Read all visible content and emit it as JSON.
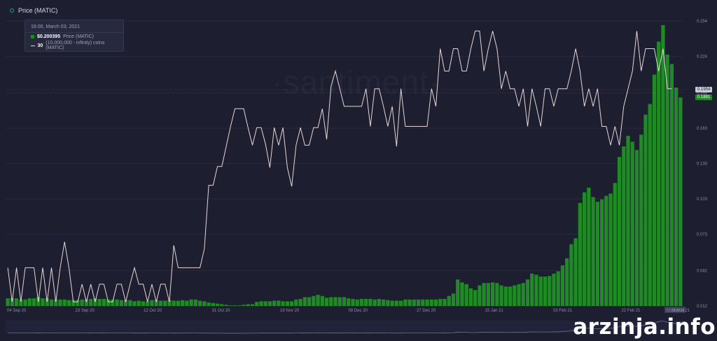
{
  "legend": {
    "label": "Price (MATIC)"
  },
  "tooltip": {
    "date": "16:00, March 03, 2021",
    "price_value": "$0.200395",
    "price_label": "Price (MATIC)",
    "holders_value": "30",
    "holders_label": "(10,000,000 - infinity) coins (MATIC)"
  },
  "watermark": "·santiment·",
  "current_tags": {
    "line": "0.1954",
    "bar": "0.1891"
  },
  "site_watermark": "arzinja.info",
  "colors": {
    "background": "#1d1f31",
    "bars": "#1f8b24",
    "line": "#e8d5d5"
  },
  "chart_data": {
    "type": "bar",
    "x_ticks": [
      "04 Sep 20",
      "23 Sep 20",
      "12 Oct 20",
      "31 Oct 20",
      "19 Nov 20",
      "08 Dec 20",
      "27 Dec 20",
      "15 Jan 21",
      "03 Feb 21",
      "22 Feb 21",
      "03 Mar 21",
      "13 Mar 21"
    ],
    "y_ticks": [
      "0.254",
      "0.224",
      "0.193",
      "0.163",
      "0.133",
      "0.103",
      "0.073",
      "0.042",
      "0.012"
    ],
    "y_range": [
      0.012,
      0.254
    ],
    "series": [
      {
        "name": "Price (MATIC)",
        "type": "bar",
        "values": [
          0.0185,
          0.0185,
          0.0185,
          0.0175,
          0.0175,
          0.0185,
          0.0185,
          0.0195,
          0.0185,
          0.0185,
          0.0175,
          0.0175,
          0.0175,
          0.0175,
          0.017,
          0.017,
          0.017,
          0.0175,
          0.0175,
          0.018,
          0.0185,
          0.018,
          0.018,
          0.0175,
          0.0175,
          0.0175,
          0.017,
          0.017,
          0.017,
          0.016,
          0.0165,
          0.016,
          0.016,
          0.017,
          0.017,
          0.0165,
          0.0165,
          0.017,
          0.0165,
          0.0165,
          0.017,
          0.0165,
          0.0175,
          0.0175,
          0.0165,
          0.016,
          0.015,
          0.0145,
          0.014,
          0.0135,
          0.013,
          0.0125,
          0.0125,
          0.0125,
          0.013,
          0.0135,
          0.0135,
          0.0155,
          0.016,
          0.016,
          0.016,
          0.0165,
          0.0165,
          0.016,
          0.016,
          0.016,
          0.0175,
          0.018,
          0.0195,
          0.0195,
          0.0205,
          0.0215,
          0.0205,
          0.019,
          0.0195,
          0.0195,
          0.0195,
          0.0195,
          0.0185,
          0.018,
          0.0175,
          0.018,
          0.018,
          0.018,
          0.0175,
          0.018,
          0.0175,
          0.017,
          0.0165,
          0.0165,
          0.0165,
          0.0175,
          0.0175,
          0.0175,
          0.0175,
          0.0175,
          0.0175,
          0.0175,
          0.0175,
          0.018,
          0.018,
          0.0205,
          0.0225,
          0.0345,
          0.032,
          0.0305,
          0.027,
          0.0255,
          0.0295,
          0.0315,
          0.0315,
          0.032,
          0.0315,
          0.0295,
          0.0285,
          0.0285,
          0.0295,
          0.0305,
          0.0315,
          0.0345,
          0.0395,
          0.0385,
          0.037,
          0.037,
          0.0375,
          0.0395,
          0.0415,
          0.0465,
          0.0525,
          0.0645,
          0.0695,
          0.0995,
          0.1085,
          0.1125,
          0.1045,
          0.1005,
          0.1025,
          0.1055,
          0.1075,
          0.1165,
          0.1385,
          0.1475,
          0.1565,
          0.1515,
          0.1445,
          0.1575,
          0.1745,
          0.1835,
          0.2085,
          0.2365,
          0.2505,
          0.2255,
          0.2175,
          0.1975,
          0.1891
        ]
      },
      {
        "name": "30 (10,000,000 - infinity) coins (MATIC)",
        "type": "line",
        "values": [
          0.0445,
          0.0155,
          0.0445,
          0.0155,
          0.0445,
          0.0445,
          0.0445,
          0.0155,
          0.0445,
          0.0155,
          0.0445,
          0.0155,
          0.0445,
          0.0665,
          0.0445,
          0.0155,
          0.0155,
          0.0305,
          0.0155,
          0.0305,
          0.0155,
          0.0305,
          0.0305,
          0.0155,
          0.0155,
          0.0305,
          0.0305,
          0.0155,
          0.0305,
          0.0445,
          0.0305,
          0.0305,
          0.0155,
          0.0305,
          0.0155,
          0.0305,
          0.0305,
          0.0155,
          0.0635,
          0.0445,
          0.0445,
          0.0445,
          0.0445,
          0.0445,
          0.0445,
          0.0605,
          0.1145,
          0.1145,
          0.1305,
          0.1305,
          0.1475,
          0.1645,
          0.1795,
          0.1795,
          0.1795,
          0.1635,
          0.1485,
          0.1635,
          0.1635,
          0.1495,
          0.1295,
          0.1635,
          0.1485,
          0.1635,
          0.1295,
          0.1135,
          0.1485,
          0.1635,
          0.1485,
          0.1485,
          0.1635,
          0.1635,
          0.1795,
          0.1535,
          0.1985,
          0.2115,
          0.1965,
          0.1815,
          0.1815,
          0.1815,
          0.1815,
          0.1815,
          0.1965,
          0.1645,
          0.1965,
          0.1965,
          0.1815,
          0.1645,
          0.1815,
          0.1475,
          0.1965,
          0.1645,
          0.1645,
          0.1645,
          0.1645,
          0.1645,
          0.1645,
          0.1965,
          0.1815,
          0.2305,
          0.2115,
          0.2115,
          0.2305,
          0.2305,
          0.2115,
          0.2115,
          0.2305,
          0.2455,
          0.2455,
          0.2115,
          0.2305,
          0.2455,
          0.2305,
          0.1965,
          0.2115,
          0.1965,
          0.1965,
          0.1815,
          0.1965,
          0.1645,
          0.1965,
          0.1815,
          0.1645,
          0.1965,
          0.1965,
          0.1815,
          0.1965,
          0.1965,
          0.1965,
          0.2115,
          0.2305,
          0.2115,
          0.1815,
          0.1965,
          0.1815,
          0.1965,
          0.1645,
          0.1645,
          0.1485,
          0.1645,
          0.1485,
          0.1815,
          0.1965,
          0.2115,
          0.2455,
          0.2115,
          0.2305,
          0.2305,
          0.2305,
          0.2115,
          0.2305,
          0.1965,
          0.1965
        ]
      }
    ]
  }
}
